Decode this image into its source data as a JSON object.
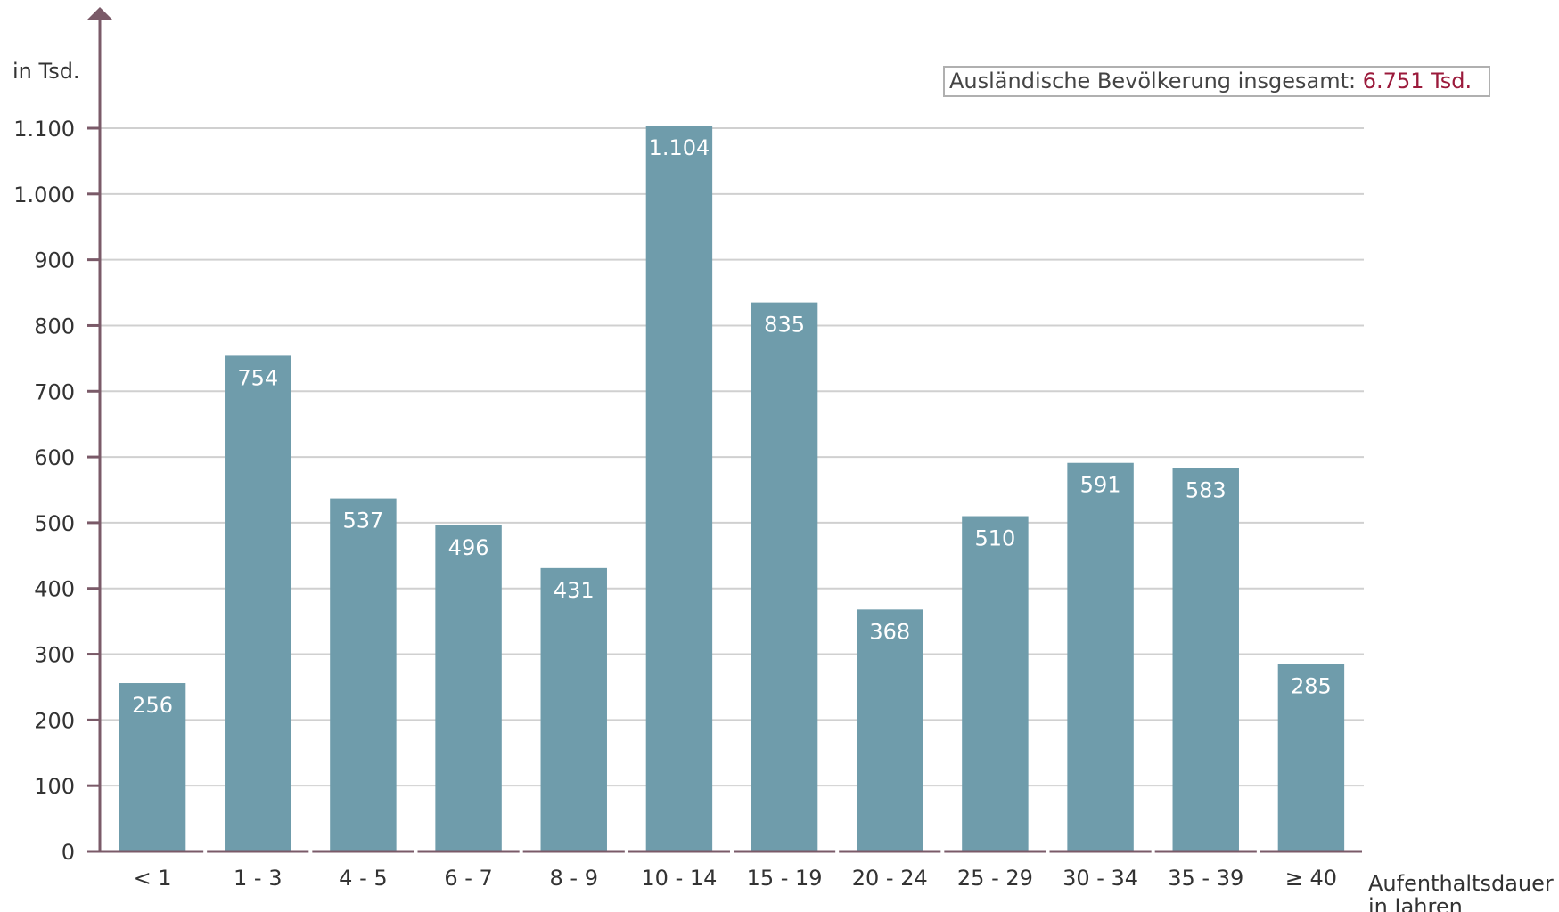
{
  "chart_data": {
    "type": "bar",
    "ylabel": "in Tsd.",
    "xlabel_line1": "Aufenthaltsdauer",
    "xlabel_line2": "in Jahren",
    "ylim": [
      0,
      1100
    ],
    "yticks": [
      0,
      100,
      200,
      300,
      400,
      500,
      600,
      700,
      800,
      900,
      1000,
      1100
    ],
    "ytick_labels": [
      "0",
      "100",
      "200",
      "300",
      "400",
      "500",
      "600",
      "700",
      "800",
      "900",
      "1.000",
      "1.100"
    ],
    "categories": [
      "< 1",
      "1 - 3",
      "4 - 5",
      "6 - 7",
      "8 - 9",
      "10 - 14",
      "15 - 19",
      "20 - 24",
      "25 - 29",
      "30 - 34",
      "35 - 39",
      "≥ 40"
    ],
    "values": [
      256,
      754,
      537,
      496,
      431,
      1104,
      835,
      368,
      510,
      591,
      583,
      285
    ],
    "value_labels": [
      "256",
      "754",
      "537",
      "496",
      "431",
      "1.104",
      "835",
      "368",
      "510",
      "591",
      "583",
      "285"
    ],
    "grid": true,
    "colors": {
      "bar": "#6f9cab",
      "axis": "#7a5a68",
      "grid": "#d0d0d0",
      "accent": "#9b1a3b"
    },
    "annotation": {
      "text": "Ausländische Bevölkerung insgesamt: ",
      "value": "6.751 Tsd."
    }
  }
}
